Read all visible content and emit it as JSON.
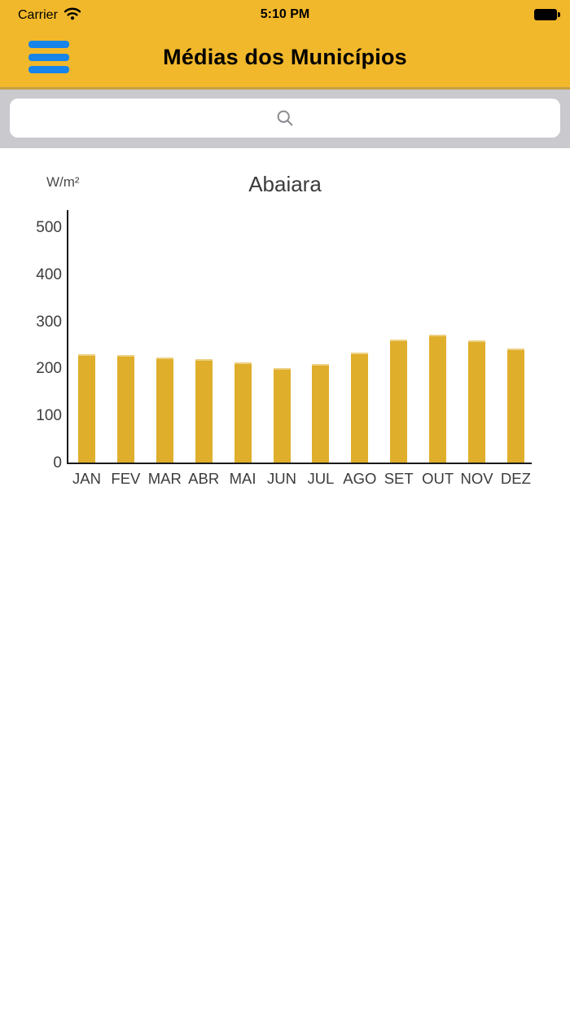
{
  "status_bar": {
    "carrier": "Carrier",
    "time": "5:10 PM",
    "wifi_icon": "wifi-icon",
    "battery_icon": "battery-icon"
  },
  "nav": {
    "title": "Médias dos Municípios",
    "menu_icon": "hamburger-menu-icon"
  },
  "search": {
    "value": "",
    "placeholder": "",
    "icon": "search-icon"
  },
  "chart_data": {
    "type": "bar",
    "title": "Abaiara",
    "ylabel": "W/m²",
    "xlabel": "",
    "categories": [
      "JAN",
      "FEV",
      "MAR",
      "ABR",
      "MAI",
      "JUN",
      "JUL",
      "AGO",
      "SET",
      "OUT",
      "NOV",
      "DEZ"
    ],
    "values": [
      230,
      228,
      224,
      220,
      213,
      200,
      210,
      233,
      262,
      272,
      259,
      242
    ],
    "ylim": [
      0,
      500
    ],
    "yticks": [
      0,
      100,
      200,
      300,
      400,
      500
    ],
    "grid": false,
    "legend": "none"
  },
  "colors": {
    "header_bg": "#F1B82B",
    "header_border": "#C7A043",
    "menu_blue": "#1684E8",
    "search_strip_bg": "#C9C9CE",
    "search_icon_gray": "#8A8A8F",
    "bar_fill": "#DFAE2B",
    "bar_top_edge": "#EDD083",
    "axis_color": "#1A1A1A",
    "chart_text": "#3C3C3C",
    "status_text": "#000000"
  }
}
